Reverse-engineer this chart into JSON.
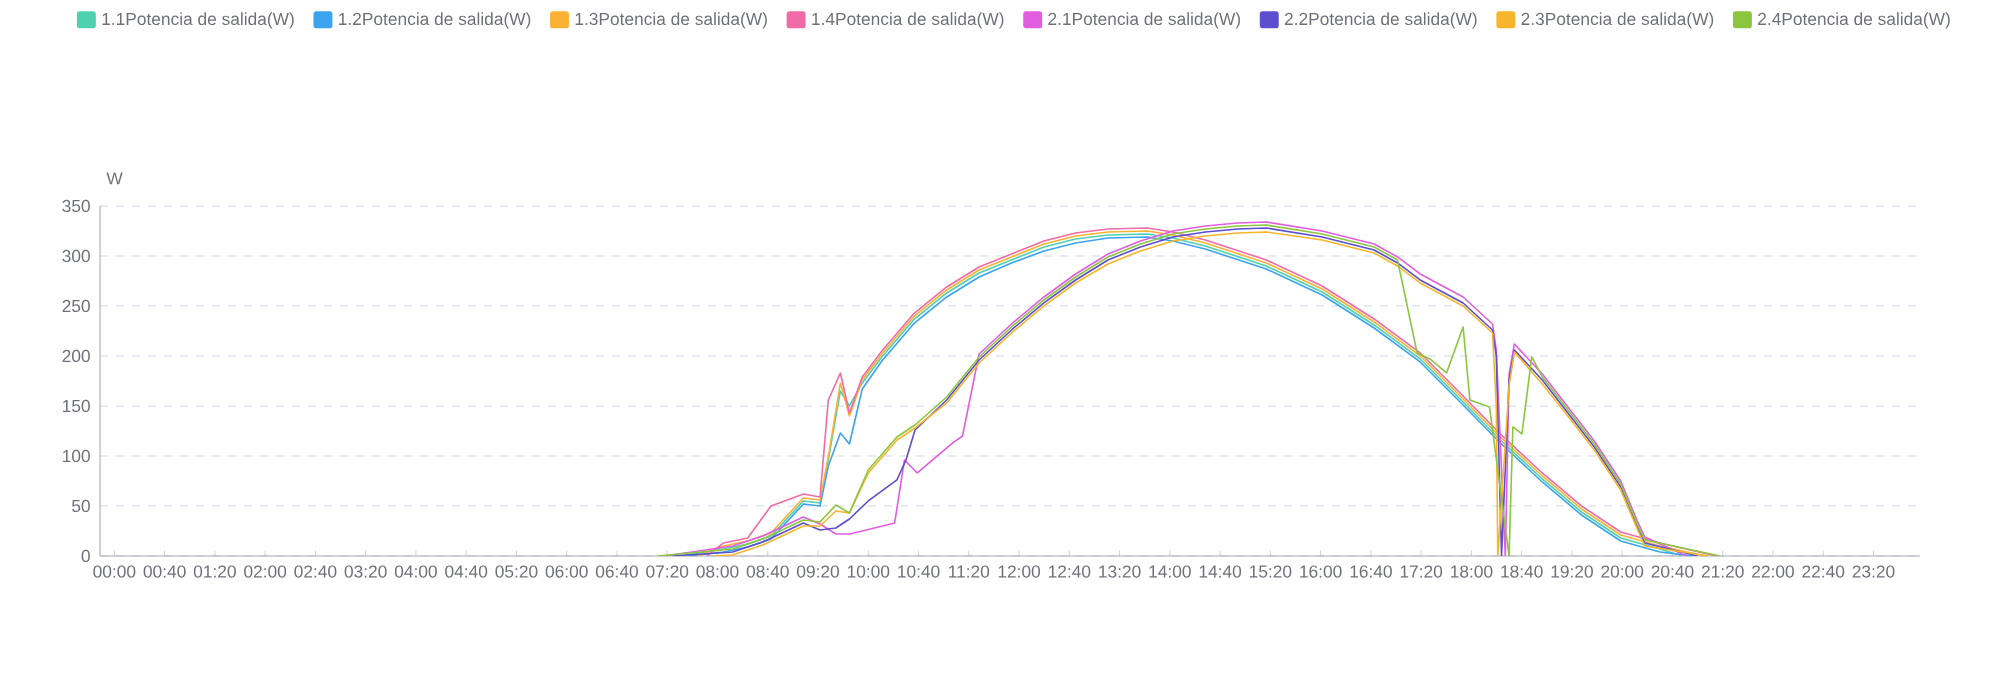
{
  "chart_data": {
    "type": "line",
    "ylabel": "W",
    "xlim": [
      -0.19,
      23.95
    ],
    "ylim": [
      0,
      350
    ],
    "yticks": [
      0,
      50,
      100,
      150,
      200,
      250,
      300,
      350
    ],
    "xticks": [
      {
        "value": 0,
        "label": "00:00"
      },
      {
        "value": 0.6667,
        "label": "00:40"
      },
      {
        "value": 1.3333,
        "label": "01:20"
      },
      {
        "value": 2,
        "label": "02:00"
      },
      {
        "value": 2.6667,
        "label": "02:40"
      },
      {
        "value": 3.3333,
        "label": "03:20"
      },
      {
        "value": 4,
        "label": "04:00"
      },
      {
        "value": 4.6667,
        "label": "04:40"
      },
      {
        "value": 5.3333,
        "label": "05:20"
      },
      {
        "value": 6,
        "label": "06:00"
      },
      {
        "value": 6.6667,
        "label": "06:40"
      },
      {
        "value": 7.3333,
        "label": "07:20"
      },
      {
        "value": 8,
        "label": "08:00"
      },
      {
        "value": 8.6667,
        "label": "08:40"
      },
      {
        "value": 9.3333,
        "label": "09:20"
      },
      {
        "value": 10,
        "label": "10:00"
      },
      {
        "value": 10.6667,
        "label": "10:40"
      },
      {
        "value": 11.3333,
        "label": "11:20"
      },
      {
        "value": 12,
        "label": "12:00"
      },
      {
        "value": 12.6667,
        "label": "12:40"
      },
      {
        "value": 13.3333,
        "label": "13:20"
      },
      {
        "value": 14,
        "label": "14:00"
      },
      {
        "value": 14.6667,
        "label": "14:40"
      },
      {
        "value": 15.3333,
        "label": "15:20"
      },
      {
        "value": 16,
        "label": "16:00"
      },
      {
        "value": 16.6667,
        "label": "16:40"
      },
      {
        "value": 17.3333,
        "label": "17:20"
      },
      {
        "value": 18,
        "label": "18:00"
      },
      {
        "value": 18.6667,
        "label": "18:40"
      },
      {
        "value": 19.3333,
        "label": "19:20"
      },
      {
        "value": 20,
        "label": "20:00"
      },
      {
        "value": 20.6667,
        "label": "20:40"
      },
      {
        "value": 21.3333,
        "label": "21:20"
      },
      {
        "value": 22,
        "label": "22:00"
      },
      {
        "value": 22.6667,
        "label": "22:40"
      },
      {
        "value": 23.3333,
        "label": "23:20"
      }
    ],
    "grid": "y",
    "legend": "top",
    "marker": "none",
    "line_style": "solid",
    "series": [
      {
        "name": "1.1Potencia de salida(W)",
        "color": "#4fd1b0",
        "x": [
          7.5,
          8.08,
          8.4,
          8.71,
          9.14,
          9.36,
          9.47,
          9.63,
          9.75,
          9.92,
          10.18,
          10.6,
          11.04,
          11.47,
          11.9,
          12.33,
          12.75,
          13.18,
          13.7,
          14.04,
          14.47,
          15.28,
          16.02,
          16.71,
          17.32,
          17.89,
          18.37,
          18.94,
          19.46,
          19.98,
          20.5,
          20.8
        ],
        "values": [
          0,
          7,
          12,
          20,
          55,
          53,
          96,
          165,
          150,
          173,
          199,
          236,
          263,
          283,
          296,
          309,
          317,
          321,
          322,
          318,
          310,
          290,
          264,
          231,
          197,
          154,
          117,
          77,
          44,
          18,
          7,
          0
        ]
      },
      {
        "name": "1.2Potencia de salida(W)",
        "color": "#3ba4f0",
        "x": [
          7.62,
          8.08,
          8.4,
          8.71,
          9.14,
          9.36,
          9.47,
          9.63,
          9.75,
          9.92,
          10.18,
          10.6,
          11.04,
          11.47,
          11.9,
          12.33,
          12.75,
          13.18,
          13.7,
          14.04,
          14.47,
          15.28,
          16.02,
          16.71,
          17.32,
          17.89,
          18.37,
          18.94,
          19.46,
          19.98,
          20.5,
          20.95
        ],
        "values": [
          0,
          4,
          9,
          17,
          52,
          50,
          90,
          123,
          112,
          167,
          195,
          232,
          259,
          279,
          293,
          305,
          313,
          318,
          319,
          315,
          307,
          287,
          261,
          228,
          194,
          151,
          114,
          74,
          41,
          15,
          4,
          0
        ]
      },
      {
        "name": "1.3Potencia de salida(W)",
        "color": "#f9b233",
        "x": [
          7.74,
          8.08,
          8.4,
          8.71,
          9.14,
          9.36,
          9.47,
          9.63,
          9.75,
          9.92,
          10.18,
          10.6,
          11.04,
          11.47,
          11.9,
          12.33,
          12.75,
          13.18,
          13.7,
          14.04,
          14.47,
          15.28,
          16.02,
          16.71,
          17.32,
          17.89,
          18.37,
          18.94,
          19.46,
          19.98,
          20.5,
          21.1
        ],
        "values": [
          0,
          10,
          15,
          23,
          58,
          56,
          99,
          173,
          140,
          176,
          202,
          239,
          266,
          286,
          299,
          312,
          320,
          324,
          325,
          321,
          313,
          293,
          267,
          234,
          200,
          157,
          120,
          80,
          47,
          21,
          10,
          0
        ]
      },
      {
        "name": "1.4Potencia de salida(W)",
        "color": "#f06ba8",
        "x": [
          7.86,
          8.08,
          8.4,
          8.71,
          9.14,
          9.36,
          9.47,
          9.63,
          9.75,
          9.92,
          10.18,
          10.6,
          11.04,
          11.47,
          11.9,
          12.33,
          12.75,
          13.18,
          13.7,
          14.04,
          14.47,
          15.28,
          16.02,
          16.71,
          17.32,
          17.89,
          18.37,
          18.94,
          19.46,
          19.98,
          20.5,
          21.25
        ],
        "values": [
          0,
          13,
          18,
          50,
          62,
          59,
          156,
          183,
          143,
          179,
          205,
          242,
          269,
          289,
          302,
          315,
          323,
          327,
          328,
          324,
          316,
          296,
          270,
          237,
          203,
          160,
          123,
          83,
          50,
          24,
          13,
          0
        ]
      },
      {
        "name": "2.1Potencia de salida(W)",
        "color": "#e25ee0",
        "x": [
          7.3,
          8.2,
          8.6,
          9.14,
          9.36,
          9.57,
          9.75,
          9.92,
          10.35,
          10.48,
          10.65,
          11.12,
          11.25,
          11.47,
          11.9,
          12.33,
          12.75,
          13.18,
          13.61,
          14.04,
          14.47,
          14.9,
          15.28,
          16.02,
          16.71,
          17.02,
          17.32,
          17.89,
          18.28,
          18.33,
          18.45,
          18.5,
          18.57,
          18.94,
          19.28,
          19.63,
          19.98,
          20.2,
          20.3,
          20.85
        ],
        "values": [
          0,
          10,
          20,
          39,
          32,
          22,
          22,
          25,
          33,
          96,
          83,
          113,
          120,
          202,
          232,
          259,
          282,
          302,
          315,
          325,
          330,
          333,
          334,
          325,
          312,
          299,
          282,
          259,
          232,
          206,
          0,
          182,
          212,
          182,
          149,
          115,
          75,
          35,
          19,
          0
        ]
      },
      {
        "name": "2.2Potencia de salida(W)",
        "color": "#5b4fcf",
        "x": [
          7.4,
          8.2,
          8.6,
          9.14,
          9.36,
          9.57,
          9.75,
          10.0,
          10.38,
          10.5,
          10.62,
          11.04,
          11.47,
          11.9,
          12.33,
          12.75,
          13.18,
          13.61,
          14.04,
          14.47,
          14.9,
          15.28,
          16.02,
          16.71,
          17.02,
          17.32,
          17.89,
          18.28,
          18.33,
          18.4,
          18.5,
          18.57,
          18.94,
          19.28,
          19.63,
          19.98,
          20.2,
          20.3,
          21.0
        ],
        "values": [
          0,
          4,
          14,
          33,
          26,
          28,
          37,
          55,
          76,
          96,
          126,
          156,
          196,
          226,
          253,
          276,
          296,
          309,
          319,
          324,
          327,
          328,
          319,
          306,
          293,
          276,
          253,
          226,
          200,
          0,
          176,
          206,
          176,
          143,
          109,
          69,
          29,
          13,
          0
        ]
      },
      {
        "name": "2.3Potencia de salida(W)",
        "color": "#f7b52c",
        "x": [
          7.95,
          8.2,
          8.6,
          9.14,
          9.36,
          9.57,
          9.75,
          10.0,
          10.38,
          10.5,
          10.62,
          11.04,
          11.47,
          11.9,
          12.33,
          12.75,
          13.18,
          13.61,
          14.04,
          14.47,
          14.9,
          15.28,
          16.02,
          16.71,
          17.02,
          17.32,
          17.89,
          18.28,
          18.33,
          18.35,
          18.5,
          18.57,
          18.94,
          19.28,
          19.63,
          19.98,
          20.2,
          20.3,
          21.15
        ],
        "values": [
          0,
          1,
          11,
          30,
          30,
          45,
          43,
          83,
          116,
          122,
          128,
          153,
          193,
          223,
          250,
          273,
          292,
          305,
          315,
          320,
          323,
          324,
          316,
          303,
          290,
          273,
          250,
          223,
          150,
          0,
          170,
          204,
          172,
          140,
          106,
          66,
          27,
          10,
          0
        ]
      },
      {
        "name": "2.4Potencia de salida(W)",
        "color": "#8cc63f",
        "x": [
          7.2,
          8.2,
          8.6,
          9.14,
          9.36,
          9.57,
          9.75,
          10.0,
          10.38,
          10.62,
          11.04,
          11.47,
          11.9,
          12.33,
          12.75,
          13.18,
          13.61,
          14.04,
          14.47,
          14.9,
          15.28,
          16.02,
          16.71,
          17.02,
          17.28,
          17.45,
          17.67,
          17.89,
          17.98,
          18.24,
          18.5,
          18.55,
          18.67,
          18.8,
          18.94,
          19.28,
          19.63,
          19.98,
          20.2,
          20.3,
          21.3
        ],
        "values": [
          0,
          7,
          17,
          36,
          34,
          51,
          43,
          86,
          119,
          131,
          159,
          199,
          229,
          256,
          279,
          299,
          312,
          322,
          327,
          330,
          331,
          322,
          309,
          296,
          203,
          197,
          183,
          229,
          156,
          149,
          0,
          129,
          122,
          199,
          179,
          146,
          112,
          72,
          32,
          16,
          0
        ]
      }
    ]
  }
}
